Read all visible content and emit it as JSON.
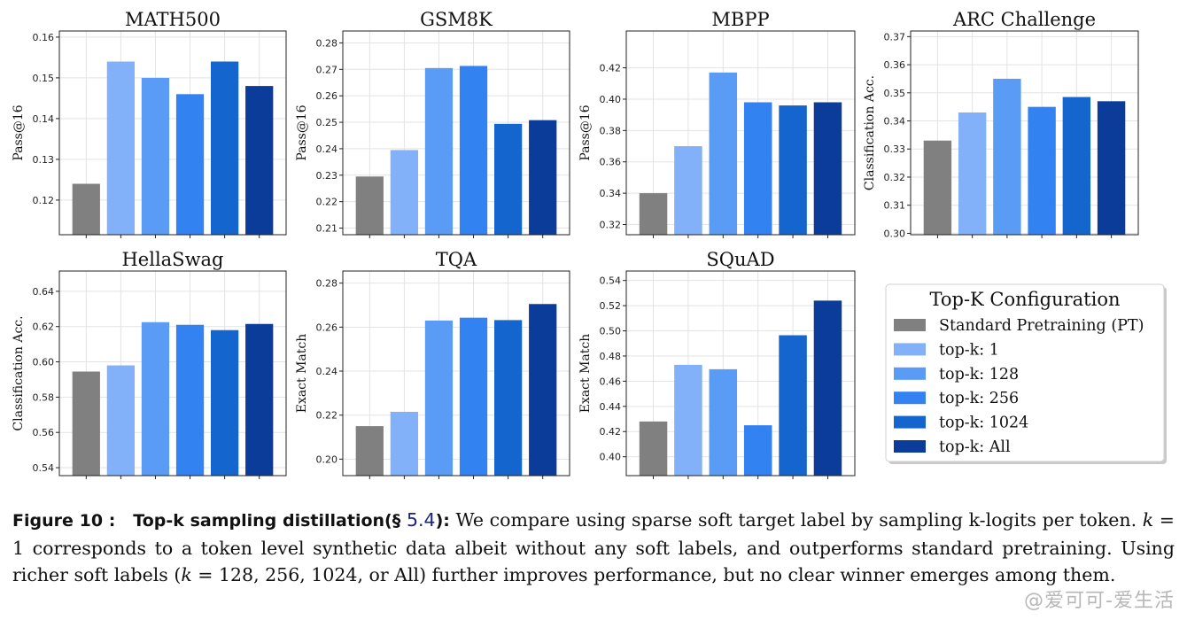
{
  "legend": {
    "title": "Top-K Configuration",
    "entries": [
      {
        "name": "Standard Pretraining (PT)",
        "color": "#808080"
      },
      {
        "name": "top-k: 1",
        "color": "#82b1f9"
      },
      {
        "name": "top-k: 128",
        "color": "#5a9bf5"
      },
      {
        "name": "top-k: 256",
        "color": "#3382f2"
      },
      {
        "name": "top-k: 1024",
        "color": "#1565cf"
      },
      {
        "name": "top-k: All",
        "color": "#0b3c99"
      }
    ]
  },
  "chart_data": [
    {
      "type": "bar",
      "title": "MATH500",
      "ylabel": "Pass@16",
      "ylim": [
        0.1115,
        0.1615
      ],
      "yticks": [
        "0.12",
        "0.13",
        "0.14",
        "0.15",
        "0.16"
      ],
      "tick_values": [
        0.12,
        0.13,
        0.14,
        0.15,
        0.16
      ],
      "series": [
        "Standard Pretraining (PT)",
        "top-k: 1",
        "top-k: 128",
        "top-k: 256",
        "top-k: 1024",
        "top-k: All"
      ],
      "values": [
        0.124,
        0.154,
        0.15,
        0.146,
        0.154,
        0.148
      ]
    },
    {
      "type": "bar",
      "title": "GSM8K",
      "ylabel": "Pass@16",
      "ylim": [
        0.2075,
        0.2845
      ],
      "yticks": [
        "0.21",
        "0.22",
        "0.23",
        "0.24",
        "0.25",
        "0.26",
        "0.27",
        "0.28"
      ],
      "tick_values": [
        0.21,
        0.22,
        0.23,
        0.24,
        0.25,
        0.26,
        0.27,
        0.28
      ],
      "series": [
        "Standard Pretraining (PT)",
        "top-k: 1",
        "top-k: 128",
        "top-k: 256",
        "top-k: 1024",
        "top-k: All"
      ],
      "values": [
        0.2295,
        0.2395,
        0.2705,
        0.2713,
        0.2494,
        0.2508
      ]
    },
    {
      "type": "bar",
      "title": "MBPP",
      "ylabel": "Pass@16",
      "ylim": [
        0.3135,
        0.4435
      ],
      "yticks": [
        "0.32",
        "0.34",
        "0.36",
        "0.38",
        "0.40",
        "0.42"
      ],
      "tick_values": [
        0.32,
        0.34,
        0.36,
        0.38,
        0.4,
        0.42
      ],
      "series": [
        "Standard Pretraining (PT)",
        "top-k: 1",
        "top-k: 128",
        "top-k: 256",
        "top-k: 1024",
        "top-k: All"
      ],
      "values": [
        0.34,
        0.37,
        0.417,
        0.398,
        0.396,
        0.398
      ]
    },
    {
      "type": "bar",
      "title": "ARC Challenge",
      "ylabel": "Classification Acc.",
      "ylim": [
        0.2995,
        0.372
      ],
      "yticks": [
        "0.30",
        "0.31",
        "0.32",
        "0.33",
        "0.34",
        "0.35",
        "0.36",
        "0.37"
      ],
      "tick_values": [
        0.3,
        0.31,
        0.32,
        0.33,
        0.34,
        0.35,
        0.36,
        0.37
      ],
      "series": [
        "Standard Pretraining (PT)",
        "top-k: 1",
        "top-k: 128",
        "top-k: 256",
        "top-k: 1024",
        "top-k: All"
      ],
      "values": [
        0.333,
        0.343,
        0.355,
        0.345,
        0.3485,
        0.347
      ]
    },
    {
      "type": "bar",
      "title": "HellaSwag",
      "ylabel": "Classification Acc.",
      "ylim": [
        0.5355,
        0.6515
      ],
      "yticks": [
        "0.54",
        "0.56",
        "0.58",
        "0.60",
        "0.62",
        "0.64"
      ],
      "tick_values": [
        0.54,
        0.56,
        0.58,
        0.6,
        0.62,
        0.64
      ],
      "series": [
        "Standard Pretraining (PT)",
        "top-k: 1",
        "top-k: 128",
        "top-k: 256",
        "top-k: 1024",
        "top-k: All"
      ],
      "values": [
        0.5945,
        0.598,
        0.6225,
        0.621,
        0.618,
        0.6215
      ]
    },
    {
      "type": "bar",
      "title": "TQA",
      "ylabel": "Exact Match",
      "ylim": [
        0.1925,
        0.2855
      ],
      "yticks": [
        "0.20",
        "0.22",
        "0.24",
        "0.26",
        "0.28"
      ],
      "tick_values": [
        0.2,
        0.22,
        0.24,
        0.26,
        0.28
      ],
      "series": [
        "Standard Pretraining (PT)",
        "top-k: 1",
        "top-k: 128",
        "top-k: 256",
        "top-k: 1024",
        "top-k: All"
      ],
      "values": [
        0.215,
        0.2215,
        0.263,
        0.2643,
        0.2632,
        0.2705
      ]
    },
    {
      "type": "bar",
      "title": "SQuAD",
      "ylabel": "Exact Match",
      "ylim": [
        0.385,
        0.5475
      ],
      "yticks": [
        "0.40",
        "0.42",
        "0.44",
        "0.46",
        "0.48",
        "0.50",
        "0.52",
        "0.54"
      ],
      "tick_values": [
        0.4,
        0.42,
        0.44,
        0.46,
        0.48,
        0.5,
        0.52,
        0.54
      ],
      "series": [
        "Standard Pretraining (PT)",
        "top-k: 1",
        "top-k: 128",
        "top-k: 256",
        "top-k: 1024",
        "top-k: All"
      ],
      "values": [
        0.428,
        0.473,
        0.4695,
        0.425,
        0.4965,
        0.524
      ]
    }
  ],
  "caption": {
    "label": "Figure 10 :",
    "heading": "Top-k sampling distillation(§ ",
    "ref": "5.4",
    "heading_end": "):",
    "text_1": " We compare using sparse soft target label by sampling k-logits per token. ",
    "k_var": "k",
    "text_2": " = 1 corresponds to a token level synthetic data albeit without any soft labels, and outperforms standard pretraining. Using richer soft labels (",
    "text_3": " = 128, 256, 1024, or All) further improves performance, but no clear winner emerges among them."
  },
  "watermark": "@爱可可-爱生活"
}
